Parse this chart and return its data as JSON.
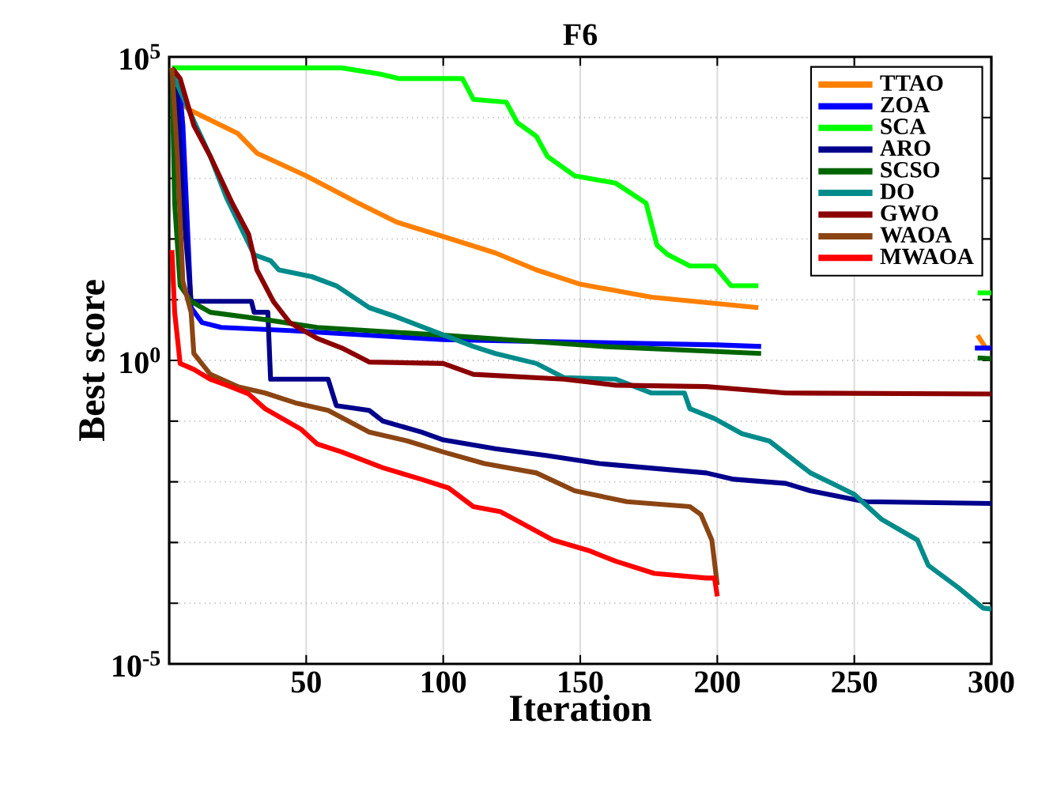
{
  "chart_data": {
    "type": "line",
    "title": "F6",
    "xlabel": "Iteration",
    "ylabel": "Best score",
    "xlim": [
      0,
      300
    ],
    "xticks": [
      50,
      100,
      150,
      200,
      250,
      300
    ],
    "ylim": [
      1e-05,
      100000.0
    ],
    "log": "y",
    "yticks": [
      {
        "value": 1e-05,
        "label": "10$^{-5}$"
      },
      {
        "value": 0.0001,
        "label": null
      },
      {
        "value": 0.001,
        "label": null
      },
      {
        "value": 0.01,
        "label": null
      },
      {
        "value": 0.1,
        "label": null
      },
      {
        "value": 1,
        "label": "10$^{0}$"
      },
      {
        "value": 10,
        "label": null
      },
      {
        "value": 100,
        "label": null
      },
      {
        "value": 1000,
        "label": null
      },
      {
        "value": 10000,
        "label": null
      },
      {
        "value": 100000,
        "label": "10$^{5}$"
      }
    ],
    "grid": true,
    "legend": "top right",
    "marker": "none",
    "line_style": "solid",
    "series": [
      {
        "name": "TTAO",
        "color": "#ff8000",
        "x": [
          1,
          2,
          8,
          25,
          32,
          50,
          69,
          83,
          100,
          119,
          134,
          150,
          176,
          215,
          250,
          295,
          298,
          300
        ],
        "values": [
          66000,
          20000,
          13000,
          5500,
          2600,
          1100,
          390,
          190,
          110,
          59,
          31,
          18,
          11,
          7.4,
          null,
          2.6,
          1.6,
          1.6
        ]
      },
      {
        "name": "ZOA",
        "color": "#0000ff",
        "x": [
          4,
          5,
          8,
          12,
          19,
          44,
          100,
          200,
          216,
          250,
          294,
          300
        ],
        "values": [
          24000,
          7400,
          7.4,
          4.2,
          3.5,
          3.1,
          2.2,
          1.8,
          1.7,
          null,
          1.6,
          1.6
        ]
      },
      {
        "name": "SCA",
        "color": "#00ff00",
        "x": [
          1,
          63,
          77,
          84,
          107,
          111,
          123,
          127,
          134,
          138,
          148,
          163,
          174,
          178,
          182,
          190,
          199,
          205,
          215,
          250,
          295,
          300
        ],
        "values": [
          66000,
          66000,
          52000,
          44000,
          44000,
          20000,
          18000,
          8300,
          4900,
          2300,
          1100,
          830,
          390,
          79,
          55,
          36,
          36,
          17,
          17,
          null,
          13,
          13
        ]
      },
      {
        "name": "ARO",
        "color": "#00008b",
        "x": [
          1,
          3,
          5,
          8,
          30,
          31,
          36,
          37,
          58,
          61,
          73,
          78,
          92,
          100,
          119,
          138,
          157,
          196,
          206,
          225,
          234,
          254,
          300
        ],
        "values": [
          50000,
          24000,
          390,
          9.4,
          9.4,
          6.2,
          6.2,
          0.49,
          0.49,
          0.18,
          0.15,
          0.1,
          0.066,
          0.049,
          0.035,
          0.027,
          0.02,
          0.014,
          0.011,
          0.0094,
          0.0071,
          0.0047,
          0.0044
        ]
      },
      {
        "name": "SCSO",
        "color": "#006400",
        "x": [
          1,
          2,
          4,
          8,
          15,
          35,
          54,
          100,
          158,
          216,
          250,
          295,
          300
        ],
        "values": [
          60000,
          390,
          17,
          9.4,
          6.2,
          4.7,
          3.5,
          2.6,
          1.7,
          1.3,
          null,
          1.1,
          1.07
        ]
      },
      {
        "name": "DO",
        "color": "#008b8b",
        "x": [
          1,
          2,
          8,
          15,
          21,
          31,
          37,
          40,
          52,
          61,
          73,
          83,
          96,
          111,
          119,
          134,
          144,
          163,
          176,
          188,
          190,
          199,
          209,
          219,
          234,
          242,
          250,
          260,
          273,
          277,
          288,
          297,
          300
        ],
        "values": [
          66000,
          44000,
          11000,
          2300,
          470,
          55,
          44,
          31,
          24,
          17,
          7.4,
          5.2,
          3.1,
          1.7,
          1.3,
          0.89,
          0.52,
          0.49,
          0.29,
          0.29,
          0.16,
          0.11,
          0.062,
          0.047,
          0.014,
          0.0094,
          0.0062,
          0.0024,
          0.0011,
          0.00042,
          0.00018,
          8.3e-05,
          8e-05
        ]
      },
      {
        "name": "GWO",
        "color": "#8b0000",
        "x": [
          1,
          4,
          9,
          15,
          23,
          29,
          32,
          38,
          44,
          54,
          63,
          73,
          100,
          111,
          144,
          163,
          196,
          225,
          300
        ],
        "values": [
          66000,
          44000,
          7400,
          2300,
          390,
          120,
          31,
          9.4,
          4.2,
          2.3,
          1.6,
          0.94,
          0.89,
          0.59,
          0.49,
          0.39,
          0.37,
          0.29,
          0.28
        ]
      },
      {
        "name": "WAOA",
        "color": "#8b4513",
        "x": [
          1,
          3,
          5,
          8,
          9,
          15,
          25,
          35,
          46,
          58,
          73,
          87,
          100,
          115,
          134,
          148,
          167,
          190,
          194,
          198,
          200
        ],
        "values": [
          66000,
          2300,
          20,
          6.2,
          1.3,
          0.59,
          0.37,
          0.29,
          0.2,
          0.15,
          0.066,
          0.047,
          0.031,
          0.02,
          0.014,
          0.0071,
          0.0047,
          0.0039,
          0.0029,
          0.0011,
          0.0002
        ]
      },
      {
        "name": "MWAOA",
        "color": "#ff0000",
        "x": [
          1,
          2,
          4,
          9,
          15,
          21,
          29,
          35,
          48,
          54,
          63,
          78,
          92,
          102,
          111,
          121,
          140,
          153,
          163,
          177,
          196,
          199,
          200
        ],
        "values": [
          66,
          6.2,
          0.89,
          0.71,
          0.49,
          0.39,
          0.28,
          0.16,
          0.074,
          0.042,
          0.031,
          0.017,
          0.011,
          0.0079,
          0.0039,
          0.0032,
          0.0011,
          0.00074,
          0.00049,
          0.00031,
          0.00026,
          0.00026,
          0.00013
        ]
      }
    ]
  }
}
